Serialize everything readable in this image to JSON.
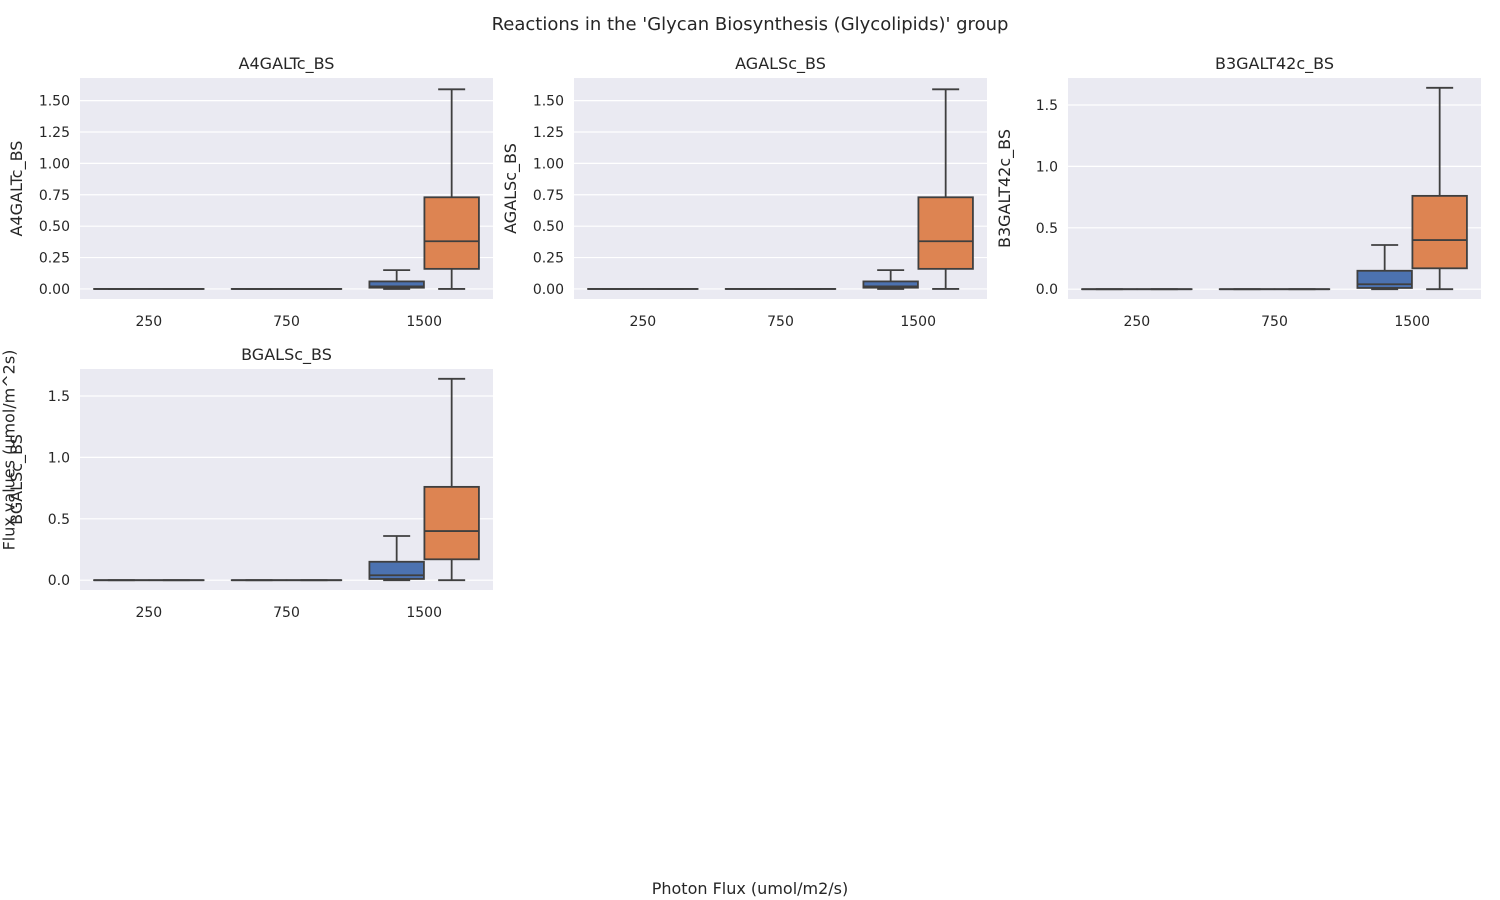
{
  "figure": {
    "title": "Reactions in the 'Glycan Biosynthesis (Glycolipids)' group",
    "xlabel": "Photon Flux (umol/m2/s)",
    "ylabel": "Flux values (umol/m^2s)"
  },
  "colors": {
    "series_1": "#4c72b0",
    "series_2": "#dd8452",
    "panel_bg": "#eaeaf2",
    "grid": "#ffffff",
    "box_line": "#3f3f3f"
  },
  "chart_data": [
    {
      "type": "box",
      "title": "A4GALTc_BS",
      "ylabel": "A4GALTc_BS",
      "xlabel": "",
      "categories": [
        "250",
        "750",
        "1500"
      ],
      "ylim": [
        -0.08,
        1.68
      ],
      "yticks": [
        "0.00",
        "0.25",
        "0.50",
        "0.75",
        "1.00",
        "1.25",
        "1.50"
      ],
      "grid": true,
      "legend": "none",
      "series": [
        {
          "boxes": [
            {
              "category": "250",
              "min": 0,
              "q1": 0,
              "median": 0,
              "q3": 0,
              "max": 0
            },
            {
              "category": "750",
              "min": 0,
              "q1": 0,
              "median": 0,
              "q3": 0,
              "max": 0
            },
            {
              "category": "1500",
              "min": 0,
              "q1": 0.01,
              "median": 0.02,
              "q3": 0.06,
              "max": 0.15
            }
          ]
        },
        {
          "boxes": [
            {
              "category": "250",
              "min": 0,
              "q1": 0,
              "median": 0,
              "q3": 0,
              "max": 0
            },
            {
              "category": "750",
              "min": 0,
              "q1": 0,
              "median": 0,
              "q3": 0,
              "max": 0
            },
            {
              "category": "1500",
              "min": 0,
              "q1": 0.16,
              "median": 0.38,
              "q3": 0.73,
              "max": 1.59
            }
          ]
        }
      ]
    },
    {
      "type": "box",
      "title": "AGALSc_BS",
      "ylabel": "AGALSc_BS",
      "xlabel": "",
      "categories": [
        "250",
        "750",
        "1500"
      ],
      "ylim": [
        -0.08,
        1.68
      ],
      "yticks": [
        "0.00",
        "0.25",
        "0.50",
        "0.75",
        "1.00",
        "1.25",
        "1.50"
      ],
      "grid": true,
      "legend": "none",
      "series": [
        {
          "boxes": [
            {
              "category": "250",
              "min": 0,
              "q1": 0,
              "median": 0,
              "q3": 0,
              "max": 0
            },
            {
              "category": "750",
              "min": 0,
              "q1": 0,
              "median": 0,
              "q3": 0,
              "max": 0
            },
            {
              "category": "1500",
              "min": 0,
              "q1": 0.01,
              "median": 0.02,
              "q3": 0.06,
              "max": 0.15
            }
          ]
        },
        {
          "boxes": [
            {
              "category": "250",
              "min": 0,
              "q1": 0,
              "median": 0,
              "q3": 0,
              "max": 0
            },
            {
              "category": "750",
              "min": 0,
              "q1": 0,
              "median": 0,
              "q3": 0,
              "max": 0
            },
            {
              "category": "1500",
              "min": 0,
              "q1": 0.16,
              "median": 0.38,
              "q3": 0.73,
              "max": 1.59
            }
          ]
        }
      ]
    },
    {
      "type": "box",
      "title": "B3GALT42c_BS",
      "ylabel": "B3GALT42c_BS",
      "xlabel": "",
      "categories": [
        "250",
        "750",
        "1500"
      ],
      "ylim": [
        -0.08,
        1.72
      ],
      "yticks": [
        "0.0",
        "0.5",
        "1.0",
        "1.5"
      ],
      "grid": true,
      "legend": "none",
      "series": [
        {
          "boxes": [
            {
              "category": "250",
              "min": 0,
              "q1": 0,
              "median": 0,
              "q3": 0,
              "max": 0
            },
            {
              "category": "750",
              "min": 0,
              "q1": 0,
              "median": 0,
              "q3": 0,
              "max": 0
            },
            {
              "category": "1500",
              "min": 0,
              "q1": 0.01,
              "median": 0.04,
              "q3": 0.15,
              "max": 0.36
            }
          ]
        },
        {
          "boxes": [
            {
              "category": "250",
              "min": 0,
              "q1": 0,
              "median": 0,
              "q3": 0,
              "max": 0
            },
            {
              "category": "750",
              "min": 0,
              "q1": 0,
              "median": 0,
              "q3": 0,
              "max": 0
            },
            {
              "category": "1500",
              "min": 0,
              "q1": 0.17,
              "median": 0.4,
              "q3": 0.76,
              "max": 1.64
            }
          ]
        }
      ]
    },
    {
      "type": "box",
      "title": "BGALSc_BS",
      "ylabel": "BGALSc_BS",
      "xlabel": "",
      "categories": [
        "250",
        "750",
        "1500"
      ],
      "ylim": [
        -0.08,
        1.72
      ],
      "yticks": [
        "0.0",
        "0.5",
        "1.0",
        "1.5"
      ],
      "grid": true,
      "legend": "none",
      "series": [
        {
          "boxes": [
            {
              "category": "250",
              "min": 0,
              "q1": 0,
              "median": 0,
              "q3": 0,
              "max": 0
            },
            {
              "category": "750",
              "min": 0,
              "q1": 0,
              "median": 0,
              "q3": 0,
              "max": 0
            },
            {
              "category": "1500",
              "min": 0,
              "q1": 0.01,
              "median": 0.04,
              "q3": 0.15,
              "max": 0.36
            }
          ]
        },
        {
          "boxes": [
            {
              "category": "250",
              "min": 0,
              "q1": 0,
              "median": 0,
              "q3": 0,
              "max": 0
            },
            {
              "category": "750",
              "min": 0,
              "q1": 0,
              "median": 0,
              "q3": 0,
              "max": 0
            },
            {
              "category": "1500",
              "min": 0,
              "q1": 0.17,
              "median": 0.4,
              "q3": 0.76,
              "max": 1.64
            }
          ]
        }
      ]
    }
  ]
}
